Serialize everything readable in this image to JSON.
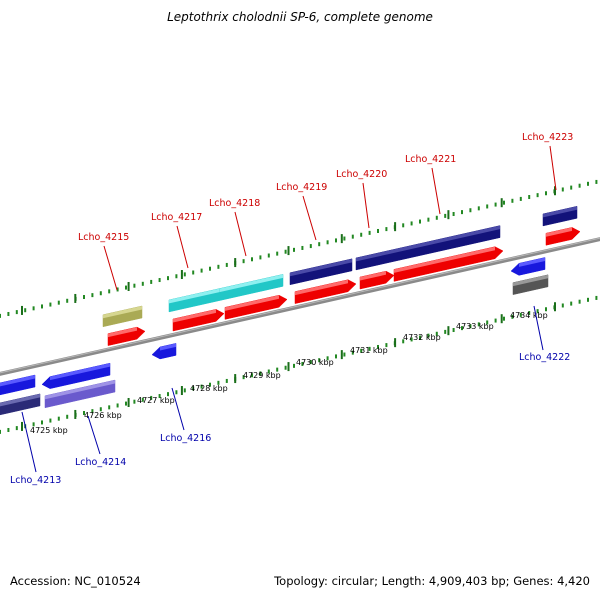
{
  "title": "Leptothrix cholodnii SP-6, complete genome",
  "footer": {
    "accession": "Accession: NC_010524",
    "summary": "Topology: circular; Length: 4,909,403 bp; Genes: 4,420"
  },
  "colors": {
    "label_forward": "#cc0000",
    "label_reverse": "#0000aa",
    "backbone": "#8a8a8a",
    "tick": "#228822"
  },
  "ticks": [
    "4725 kbp",
    "4726 kbp",
    "4727 kbp",
    "4728 kbp",
    "4729 kbp",
    "4730 kbp",
    "4731 kbp",
    "4732 kbp",
    "4733 kbp",
    "4734 kbp"
  ],
  "genes": {
    "forward": [
      "Lcho_4215",
      "Lcho_4217",
      "Lcho_4218",
      "Lcho_4219",
      "Lcho_4220",
      "Lcho_4221",
      "Lcho_4223"
    ],
    "reverse": [
      "Lcho_4213",
      "Lcho_4214",
      "Lcho_4216",
      "Lcho_4222"
    ]
  }
}
